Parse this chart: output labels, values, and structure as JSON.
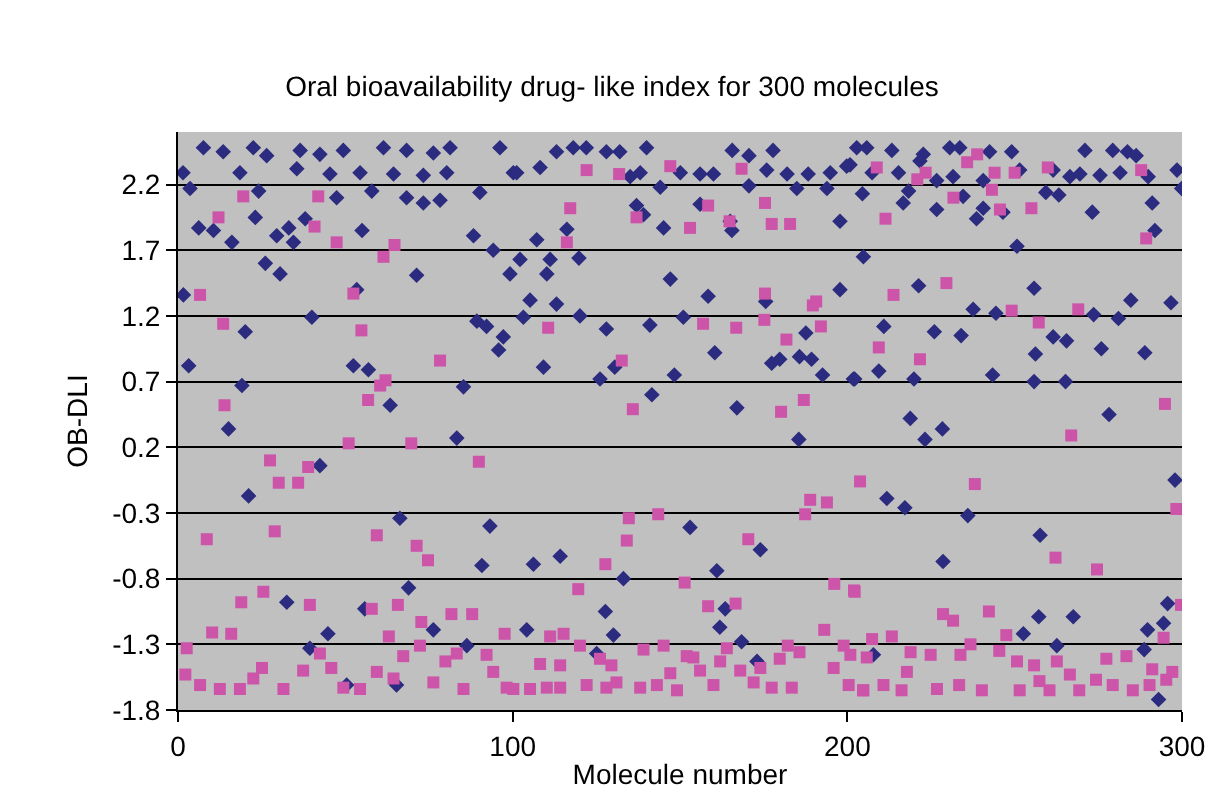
{
  "chart_data": {
    "type": "scatter",
    "title": "Oral bioavailability drug- like index for 300 molecules",
    "xlabel": "Molecule number",
    "ylabel": "OB-DLI",
    "xlim": [
      0,
      300
    ],
    "xticks": [
      0,
      100,
      200,
      300
    ],
    "ylim": [
      -1.8,
      2.6
    ],
    "yticks": [
      -1.8,
      -1.3,
      -0.8,
      -0.3,
      0.2,
      0.7,
      1.2,
      1.7,
      2.2
    ],
    "grid": "y",
    "series": [
      {
        "color": "#2b2b7f",
        "marker": "diamond",
        "x": [
          7.6,
          1.5,
          3.6,
          13.5,
          22.5,
          26.5,
          36.5,
          42.4,
          49.4,
          61.4,
          68.3,
          76.3,
          81.3,
          96.2,
          18.5,
          35.5,
          45.4,
          54.4,
          64.4,
          73.3,
          80.3,
          100.2,
          24.1,
          47.4,
          57.9,
          68.3,
          73.3,
          78.3,
          90.2,
          6.2,
          10.6,
          16.1,
          23.1,
          29.5,
          33.1,
          34.5,
          38.0,
          55.0,
          88.3,
          94.2,
          26.1,
          30.5,
          71.3,
          99.2,
          1.6,
          40.0,
          20.1,
          53.4,
          89.3,
          92.2,
          97.2,
          95.8,
          3.2,
          52.4,
          56.9,
          19.1,
          63.4,
          85.3,
          15.1,
          83.3,
          42.4,
          21.1,
          66.3,
          93.2,
          90.8,
          68.9,
          32.5,
          55.8,
          44.8,
          76.3,
          39.4,
          86.3,
          65.3,
          50.4,
          113.1,
          118.1,
          122.0,
          128.0,
          132.0,
          140.0,
          165.6,
          170.6,
          177.8,
          101.2,
          108.2,
          135.1,
          138.1,
          144.1,
          150.1,
          156.0,
          160.0,
          170.6,
          175.9,
          182.0,
          188.3,
          194.9,
          199.8,
          184.9,
          193.9,
          137.0,
          139.1,
          145.1,
          156.0,
          165.0,
          165.5,
          197.8,
          116.2,
          107.2,
          102.2,
          111.2,
          119.8,
          110.2,
          147.1,
          105.2,
          113.1,
          158.4,
          175.6,
          197.8,
          103.2,
          120.1,
          128.0,
          141.0,
          151.0,
          187.6,
          109.2,
          130.5,
          160.4,
          177.4,
          179.8,
          185.7,
          189.3,
          126.1,
          148.3,
          192.6,
          201.8,
          141.6,
          167.0,
          185.5,
          153.0,
          174.0,
          106.2,
          114.2,
          133.1,
          161.0,
          127.7,
          163.5,
          161.9,
          104.2,
          130.1,
          168.4,
          125.1,
          173.0,
          202.8,
          205.8,
          213.3,
          222.7,
          230.6,
          233.6,
          242.5,
          249.1,
          271.0,
          279.3,
          283.7,
          286.3,
          200.8,
          207.4,
          215.3,
          221.7,
          226.7,
          231.6,
          240.6,
          251.5,
          261.5,
          266.5,
          269.5,
          275.5,
          281.5,
          289.9,
          298.5,
          299.9,
          204.5,
          216.7,
          218.3,
          226.7,
          234.6,
          238.6,
          240.6,
          246.5,
          259.3,
          263.2,
          273.2,
          291.1,
          291.9,
          204.8,
          250.7,
          221.3,
          255.8,
          284.7,
          296.7,
          237.6,
          244.4,
          273.6,
          281.0,
          210.9,
          226.0,
          234.0,
          261.5,
          265.5,
          256.2,
          275.9,
          288.9,
          202.2,
          209.4,
          219.9,
          243.4,
          255.8,
          265.2,
          218.8,
          228.4,
          223.2,
          278.2,
          211.8,
          217.2,
          236.0,
          297.9,
          257.6,
          228.6,
          257.2,
          267.5,
          295.7,
          294.5,
          289.7,
          252.6,
          262.6,
          288.7,
          207.8,
          293.0
        ],
        "values": [
          2.48,
          2.29,
          2.17,
          2.45,
          2.48,
          2.42,
          2.46,
          2.43,
          2.46,
          2.48,
          2.46,
          2.44,
          2.48,
          2.48,
          2.29,
          2.32,
          2.28,
          2.29,
          2.28,
          2.27,
          2.29,
          2.29,
          2.15,
          2.1,
          2.15,
          2.1,
          2.06,
          2.08,
          2.14,
          1.87,
          1.85,
          1.76,
          1.95,
          1.81,
          1.87,
          1.76,
          1.94,
          1.85,
          1.81,
          1.7,
          1.6,
          1.52,
          1.51,
          1.52,
          1.36,
          1.19,
          1.08,
          1.4,
          1.16,
          1.12,
          1.04,
          0.94,
          0.82,
          0.82,
          0.79,
          0.67,
          0.52,
          0.66,
          0.34,
          0.27,
          0.06,
          -0.17,
          -0.34,
          -0.4,
          -0.7,
          -0.87,
          -0.98,
          -1.03,
          -1.22,
          -1.19,
          -1.33,
          -1.31,
          -1.61,
          -1.61,
          2.45,
          2.48,
          2.48,
          2.45,
          2.45,
          2.48,
          2.46,
          2.42,
          2.46,
          2.29,
          2.33,
          2.26,
          2.29,
          2.18,
          2.29,
          2.28,
          2.28,
          2.19,
          2.31,
          2.28,
          2.28,
          2.29,
          2.34,
          2.17,
          2.17,
          2.04,
          1.97,
          1.87,
          2.05,
          1.92,
          1.85,
          1.92,
          1.86,
          1.78,
          1.63,
          1.63,
          1.64,
          1.52,
          1.48,
          1.32,
          1.29,
          1.35,
          1.31,
          1.4,
          1.19,
          1.2,
          1.1,
          1.13,
          1.19,
          1.07,
          0.81,
          0.81,
          0.92,
          0.84,
          0.87,
          0.89,
          0.87,
          0.72,
          0.75,
          0.75,
          0.72,
          0.6,
          0.5,
          0.26,
          -0.41,
          -0.58,
          -0.69,
          -0.63,
          -0.8,
          -0.74,
          -1.05,
          -1.03,
          -1.17,
          -1.19,
          -1.23,
          -1.28,
          -1.37,
          -1.43,
          2.48,
          2.48,
          2.46,
          2.43,
          2.48,
          2.48,
          2.45,
          2.45,
          2.46,
          2.46,
          2.45,
          2.42,
          2.35,
          2.29,
          2.29,
          2.38,
          2.23,
          2.26,
          2.23,
          2.31,
          2.31,
          2.26,
          2.28,
          2.27,
          2.29,
          2.26,
          2.31,
          2.17,
          2.13,
          2.06,
          2.15,
          2.01,
          2.11,
          1.94,
          2.02,
          1.99,
          2.14,
          2.12,
          1.99,
          2.06,
          1.85,
          1.65,
          1.73,
          1.43,
          1.41,
          1.32,
          1.3,
          1.25,
          1.22,
          1.21,
          1.18,
          1.12,
          1.08,
          1.05,
          1.04,
          1.01,
          0.91,
          0.95,
          0.92,
          0.72,
          0.78,
          0.72,
          0.75,
          0.7,
          0.7,
          0.42,
          0.34,
          0.26,
          0.45,
          -0.19,
          -0.26,
          -0.32,
          -0.05,
          -0.47,
          -0.67,
          -1.09,
          -1.09,
          -0.99,
          -1.14,
          -1.19,
          -1.22,
          -1.31,
          -1.34,
          -1.38,
          -1.72
        ]
      },
      {
        "color": "#cc55aa",
        "marker": "square",
        "x": [
          19.5,
          41.9,
          12.1,
          40.8,
          47.4,
          61.4,
          64.7,
          6.6,
          52.4,
          13.5,
          54.8,
          78.3,
          60.4,
          62.0,
          56.8,
          13.9,
          27.5,
          38.9,
          51.0,
          69.7,
          89.9,
          30.1,
          35.9,
          8.6,
          28.9,
          59.4,
          71.3,
          74.7,
          18.9,
          25.5,
          39.4,
          57.9,
          65.7,
          72.7,
          81.7,
          87.9,
          10.2,
          15.9,
          63.0,
          97.6,
          2.6,
          2.2,
          6.6,
          12.5,
          18.5,
          22.5,
          25.1,
          31.5,
          37.4,
          42.4,
          45.8,
          49.4,
          54.4,
          59.4,
          64.4,
          67.3,
          72.3,
          76.3,
          79.9,
          83.3,
          85.3,
          92.2,
          94.2,
          98.2,
          122.1,
          131.8,
          147.1,
          168.4,
          117.2,
          137.0,
          158.4,
          175.4,
          164.8,
          153.0,
          177.4,
          182.9,
          116.2,
          175.4,
          189.7,
          190.7,
          192.1,
          156.9,
          166.8,
          175.2,
          181.8,
          110.6,
          132.6,
          135.9,
          180.2,
          187.0,
          203.8,
          188.9,
          193.9,
          187.4,
          134.7,
          143.5,
          134.1,
          170.4,
          127.7,
          119.6,
          151.4,
          158.4,
          166.6,
          196.1,
          202.0,
          193.1,
          111.2,
          115.2,
          100.2,
          105.2,
          110.2,
          114.2,
          108.2,
          114.2,
          120.1,
          122.1,
          126.1,
          128.0,
          129.5,
          131.0,
          139.1,
          138.1,
          143.1,
          145.1,
          147.1,
          149.1,
          152.0,
          154.0,
          156.0,
          160.0,
          162.0,
          164.0,
          168.0,
          172.0,
          174.0,
          177.4,
          179.8,
          182.2,
          185.7,
          183.4,
          195.9,
          198.9,
          200.9,
          200.4,
          204.7,
          238.8,
          235.8,
          208.8,
          223.4,
          244.0,
          250.0,
          259.9,
          287.8,
          220.9,
          231.7,
          243.2,
          245.6,
          255.0,
          211.4,
          289.3,
          229.6,
          213.8,
          249.1,
          257.2,
          269.0,
          209.4,
          221.7,
          294.9,
          266.9,
          238.1,
          298.3,
          262.2,
          274.6,
          202.2,
          228.6,
          231.6,
          242.3,
          299.7,
          247.5,
          294.5,
          207.4,
          213.3,
          205.8,
          218.9,
          224.9,
          233.8,
          236.8,
          245.4,
          250.7,
          255.8,
          262.6,
          266.5,
          277.4,
          283.4,
          291.1,
          297.1,
          204.8,
          210.8,
          216.2,
          217.8,
          226.8,
          233.4,
          240.2,
          251.5,
          257.4,
          260.4,
          269.3,
          274.3,
          279.3,
          285.3,
          290.3,
          295.3
        ],
        "values": [
          2.11,
          2.11,
          1.95,
          1.88,
          1.76,
          1.65,
          1.74,
          1.36,
          1.37,
          1.14,
          1.09,
          0.86,
          0.67,
          0.71,
          0.56,
          0.52,
          0.1,
          0.05,
          0.23,
          0.23,
          0.09,
          -0.07,
          -0.07,
          -0.5,
          -0.44,
          -0.47,
          -0.55,
          -0.66,
          -0.98,
          -0.9,
          -1.0,
          -1.03,
          -1.0,
          -1.13,
          -1.07,
          -1.07,
          -1.21,
          -1.22,
          -1.24,
          -1.22,
          -1.33,
          -1.53,
          -1.61,
          -1.64,
          -1.64,
          -1.56,
          -1.48,
          -1.64,
          -1.5,
          -1.37,
          -1.48,
          -1.63,
          -1.64,
          -1.51,
          -1.56,
          -1.39,
          -1.31,
          -1.59,
          -1.43,
          -1.37,
          -1.64,
          -1.38,
          -1.51,
          -1.63,
          2.31,
          2.28,
          2.34,
          2.32,
          2.02,
          1.95,
          2.04,
          2.06,
          1.92,
          1.87,
          1.9,
          1.9,
          1.76,
          1.37,
          1.28,
          1.31,
          1.12,
          1.14,
          1.11,
          1.17,
          1.02,
          1.11,
          0.86,
          0.49,
          0.47,
          0.56,
          -0.06,
          -0.2,
          -0.22,
          -0.31,
          -0.34,
          -0.31,
          -0.51,
          -0.5,
          -0.69,
          -0.88,
          -0.83,
          -1.01,
          -0.99,
          -0.84,
          -0.89,
          -1.19,
          -1.24,
          -1.22,
          -1.64,
          -1.64,
          -1.63,
          -1.63,
          -1.45,
          -1.46,
          -1.31,
          -1.61,
          -1.41,
          -1.63,
          -1.46,
          -1.59,
          -1.34,
          -1.63,
          -1.61,
          -1.31,
          -1.52,
          -1.65,
          -1.39,
          -1.4,
          -1.5,
          -1.61,
          -1.43,
          -1.33,
          -1.5,
          -1.59,
          -1.48,
          -1.63,
          -1.41,
          -1.31,
          -1.36,
          -1.63,
          -1.48,
          -1.31,
          -1.38,
          -1.61,
          -1.65,
          2.43,
          2.37,
          2.33,
          2.29,
          2.29,
          2.29,
          2.33,
          2.31,
          2.24,
          2.1,
          2.16,
          2.01,
          2.02,
          1.94,
          1.79,
          1.45,
          1.36,
          1.24,
          1.15,
          1.25,
          0.96,
          0.87,
          0.53,
          0.29,
          -0.08,
          -0.27,
          -0.64,
          -0.73,
          -0.9,
          -1.07,
          -1.12,
          -1.05,
          -1.0,
          -1.23,
          -1.25,
          -1.26,
          -1.24,
          -1.4,
          -1.36,
          -1.38,
          -1.38,
          -1.3,
          -1.35,
          -1.43,
          -1.46,
          -1.43,
          -1.53,
          -1.41,
          -1.39,
          -1.49,
          -1.51,
          -1.65,
          -1.61,
          -1.65,
          -1.51,
          -1.64,
          -1.61,
          -1.65,
          -1.65,
          -1.58,
          -1.65,
          -1.65,
          -1.57,
          -1.61,
          -1.65,
          -1.61,
          -1.57
        ]
      }
    ]
  }
}
